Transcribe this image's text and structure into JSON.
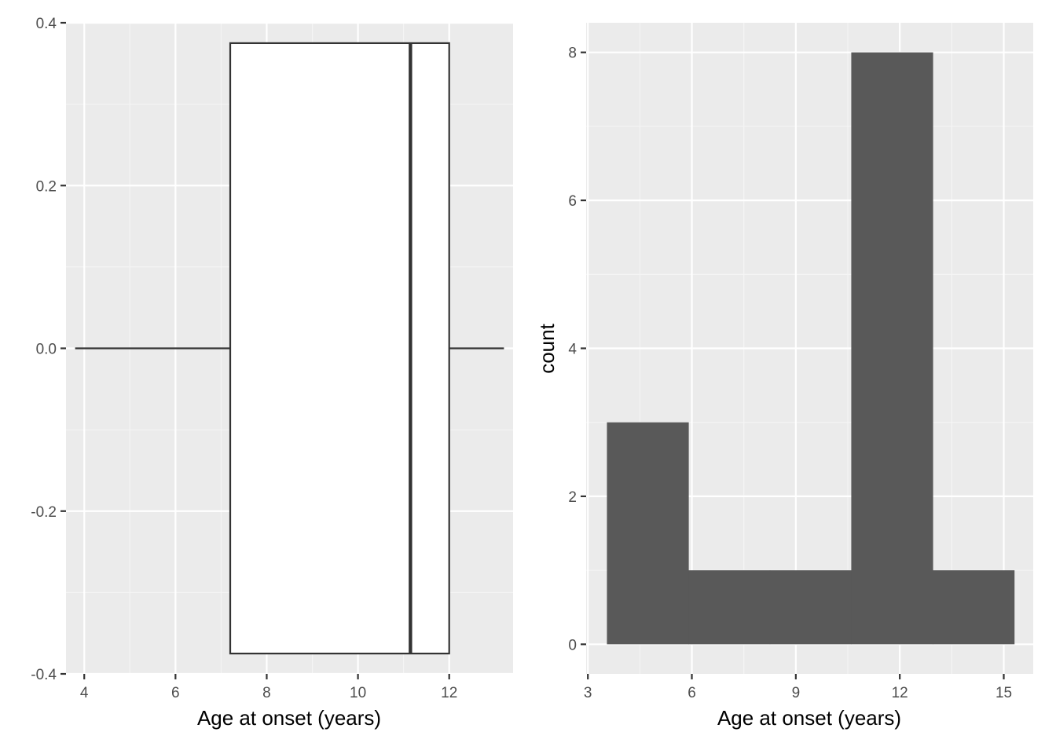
{
  "colors": {
    "panel_background": "#ebebeb",
    "grid_major": "#ffffff",
    "grid_minor": "#f5f5f5",
    "box_fill": "#ffffff",
    "box_line": "#333333",
    "bar_fill": "#595959",
    "tick_text": "#4d4d4d",
    "title_text": "#000000"
  },
  "chart_data": [
    {
      "type": "boxplot",
      "xlabel": "Age at onset (years)",
      "ylabel": "",
      "xlim": [
        3.6,
        13.4
      ],
      "ylim": [
        -0.4,
        0.4
      ],
      "x_ticks": [
        4,
        6,
        8,
        10,
        12
      ],
      "x_tick_labels": [
        "4",
        "6",
        "8",
        "10",
        "12"
      ],
      "y_ticks": [
        -0.4,
        -0.2,
        0.0,
        0.2,
        0.4
      ],
      "y_tick_labels": [
        "-0.4",
        "-0.2",
        "0.0",
        "0.2",
        "0.4"
      ],
      "grid": true,
      "box": {
        "whisker_low": 3.8,
        "q1": 7.2,
        "median": 11.15,
        "q3": 12.0,
        "whisker_high": 13.2,
        "y_center": 0.0,
        "half_width": 0.375
      }
    },
    {
      "type": "histogram",
      "xlabel": "Age at onset (years)",
      "ylabel": "count",
      "xlim": [
        2.95,
        15.85
      ],
      "ylim": [
        -0.4,
        8.4
      ],
      "x_ticks": [
        3,
        6,
        9,
        12,
        15
      ],
      "x_tick_labels": [
        "3",
        "6",
        "9",
        "12",
        "15"
      ],
      "y_ticks": [
        0,
        2,
        4,
        6,
        8
      ],
      "y_tick_labels": [
        "0",
        "2",
        "4",
        "6",
        "8"
      ],
      "grid": true,
      "bins": [
        {
          "x0": 3.55,
          "x1": 5.9,
          "count": 3
        },
        {
          "x0": 5.9,
          "x1": 8.25,
          "count": 1
        },
        {
          "x0": 8.25,
          "x1": 10.6,
          "count": 1
        },
        {
          "x0": 10.6,
          "x1": 12.95,
          "count": 8
        },
        {
          "x0": 12.95,
          "x1": 15.3,
          "count": 1
        }
      ]
    }
  ]
}
